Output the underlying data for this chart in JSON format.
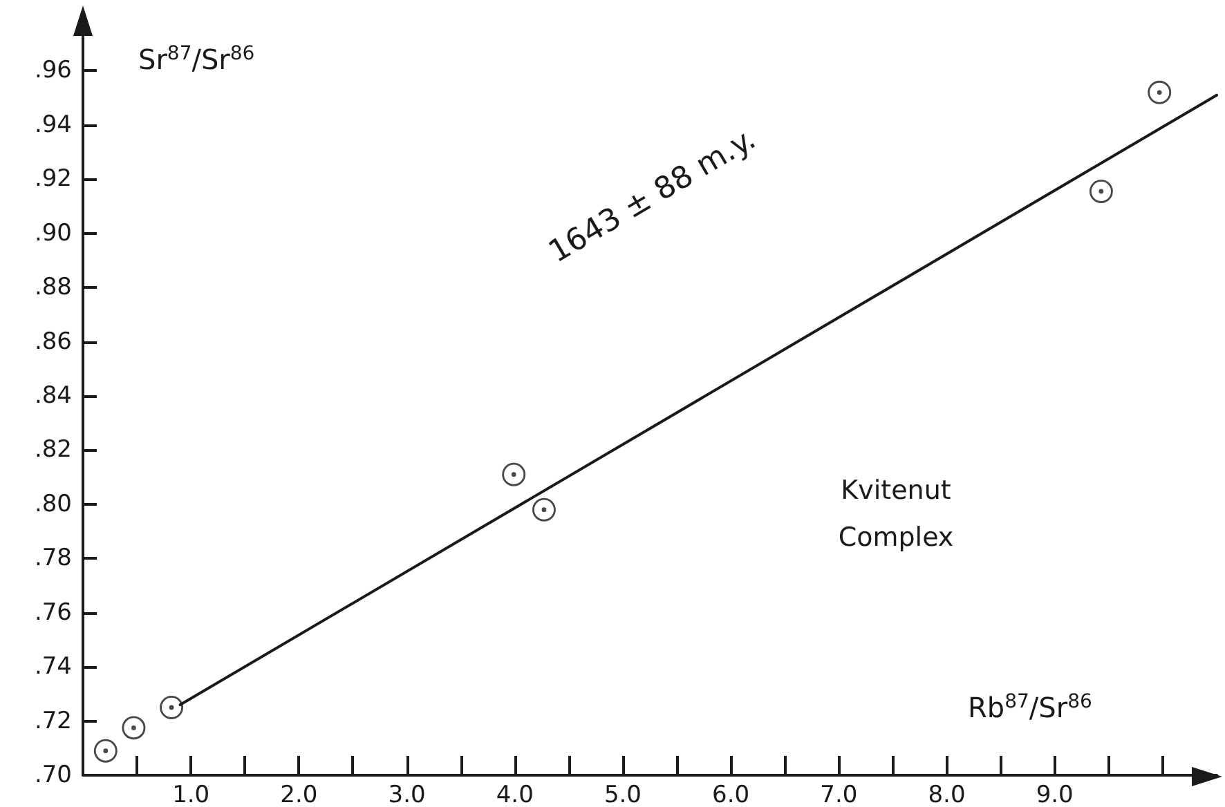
{
  "chart_data": {
    "type": "scatter",
    "xlabel": "Rb$^{87}$/Sr$^{86}$",
    "ylabel": "Sr$^{87}$/Sr$^{86}$",
    "series": [
      {
        "color": "#1a1a1a",
        "marker": "circle",
        "x": [
          0.21,
          0.47,
          0.82,
          3.99,
          4.27,
          9.43,
          9.97
        ],
        "values": [
          0.709,
          0.7175,
          0.725,
          0.811,
          0.798,
          0.9155,
          0.952
        ]
      },
      {
        "type": "line",
        "color": "#1a1a1a",
        "line_style": "solid",
        "marker": "none",
        "x": [
          0.9,
          10.5
        ],
        "values": [
          0.726,
          0.951
        ]
      }
    ],
    "xlim": [
      0,
      10.5
    ],
    "ylim": [
      0.7,
      0.98
    ],
    "xticks": [
      {
        "value": 0.5,
        "label": null
      },
      {
        "value": 1,
        "label": "1.0"
      },
      {
        "value": 1.5,
        "label": null
      },
      {
        "value": 2,
        "label": "2.0"
      },
      {
        "value": 2.5,
        "label": null
      },
      {
        "value": 3,
        "label": "3.0"
      },
      {
        "value": 3.5,
        "label": null
      },
      {
        "value": 4,
        "label": "4.0"
      },
      {
        "value": 4.5,
        "label": null
      },
      {
        "value": 5,
        "label": "5.0"
      },
      {
        "value": 5.5,
        "label": null
      },
      {
        "value": 6,
        "label": "6.0"
      },
      {
        "value": 6.5,
        "label": null
      },
      {
        "value": 7,
        "label": "7.0"
      },
      {
        "value": 7.5,
        "label": null
      },
      {
        "value": 8,
        "label": "8.0"
      },
      {
        "value": 8.5,
        "label": null
      },
      {
        "value": 9,
        "label": "9.0"
      },
      {
        "value": 9.5,
        "label": null
      },
      {
        "value": 10,
        "label": null
      }
    ],
    "yticks": [
      {
        "value": 0.7,
        "label": ".70"
      },
      {
        "value": 0.72,
        "label": ".72"
      },
      {
        "value": 0.74,
        "label": ".74"
      },
      {
        "value": 0.76,
        "label": ".76"
      },
      {
        "value": 0.78,
        "label": ".78"
      },
      {
        "value": 0.8,
        "label": ".80"
      },
      {
        "value": 0.82,
        "label": ".82"
      },
      {
        "value": 0.84,
        "label": ".84"
      },
      {
        "value": 0.86,
        "label": ".86"
      },
      {
        "value": 0.88,
        "label": ".88"
      },
      {
        "value": 0.9,
        "label": ".90"
      },
      {
        "value": 0.92,
        "label": ".92"
      },
      {
        "value": 0.94,
        "label": ".94"
      },
      {
        "value": 0.96,
        "label": ".96"
      }
    ],
    "grid": false,
    "annotations": [
      "1643 ± 88 m.y.",
      "Kvitenut\nComplex"
    ]
  }
}
